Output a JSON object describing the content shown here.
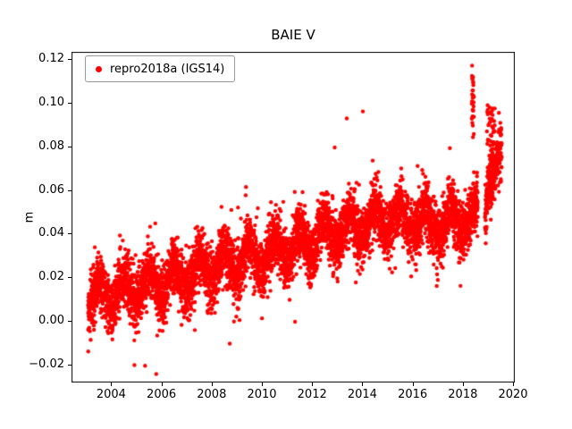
{
  "figure": {
    "title": "BAIE V"
  },
  "chart_data": {
    "type": "scatter",
    "title": "BAIE V",
    "xlabel": "",
    "ylabel": "m",
    "xlim": [
      2002.42,
      2020.07
    ],
    "ylim": [
      -0.0282,
      0.1233
    ],
    "grid": false,
    "xticks": [
      2004,
      2006,
      2008,
      2010,
      2012,
      2014,
      2016,
      2018,
      2020
    ],
    "xtick_labels": [
      "2004",
      "2006",
      "2008",
      "2010",
      "2012",
      "2014",
      "2016",
      "2018",
      "2020"
    ],
    "yticks": [
      -0.02,
      0.0,
      0.02,
      0.04,
      0.06,
      0.08,
      0.1,
      0.12
    ],
    "ytick_labels": [
      "−0.02",
      "0.00",
      "0.02",
      "0.04",
      "0.06",
      "0.08",
      "0.10",
      "0.12"
    ],
    "legend": {
      "position": "upper left",
      "entries": [
        {
          "label": "repro2018a (IGS14)",
          "color": "#ff0000",
          "marker": "point"
        }
      ]
    },
    "series": [
      {
        "name": "repro2018a (IGS14)",
        "color": "#ff0000",
        "sampling": "daily",
        "points_per_year": 365,
        "x_start": 2003.08,
        "x_end": 2019.55,
        "trend_points": [
          [
            2003.08,
            0.009
          ],
          [
            2004.0,
            0.013
          ],
          [
            2005.0,
            0.015
          ],
          [
            2006.0,
            0.017
          ],
          [
            2007.0,
            0.021
          ],
          [
            2008.0,
            0.024
          ],
          [
            2009.0,
            0.027
          ],
          [
            2010.0,
            0.03
          ],
          [
            2011.0,
            0.033
          ],
          [
            2012.0,
            0.037
          ],
          [
            2013.0,
            0.041
          ],
          [
            2014.0,
            0.044
          ],
          [
            2015.0,
            0.046
          ],
          [
            2016.0,
            0.047
          ],
          [
            2017.0,
            0.044
          ],
          [
            2018.0,
            0.046
          ],
          [
            2018.85,
            0.049
          ],
          [
            2019.0,
            0.068
          ],
          [
            2019.55,
            0.07
          ]
        ],
        "seasonal_amplitude": 0.0065,
        "noise_sigma": 0.0062,
        "heavy_tail_sigma": 0.011,
        "heavy_tail_fraction": 0.05,
        "gaps": [
          [
            2018.6,
            2018.88
          ]
        ],
        "high_clusters": [
          {
            "x_center": 2018.4,
            "x_spread": 0.045,
            "count": 26,
            "y_min": 0.083,
            "y_max": 0.114
          },
          {
            "x_center": 2019.12,
            "x_spread": 0.16,
            "count": 45,
            "y_min": 0.072,
            "y_max": 0.099
          }
        ],
        "outliers": [
          {
            "x": 2005.35,
            "y": -0.0205
          },
          {
            "x": 2009.05,
            "y": 0.052
          },
          {
            "x": 2011.62,
            "y": 0.059
          },
          {
            "x": 2012.9,
            "y": 0.0795
          },
          {
            "x": 2014.02,
            "y": 0.096
          },
          {
            "x": 2016.2,
            "y": 0.071
          },
          {
            "x": 2018.37,
            "y": 0.117
          },
          {
            "x": 2018.42,
            "y": 0.108
          }
        ]
      }
    ]
  }
}
